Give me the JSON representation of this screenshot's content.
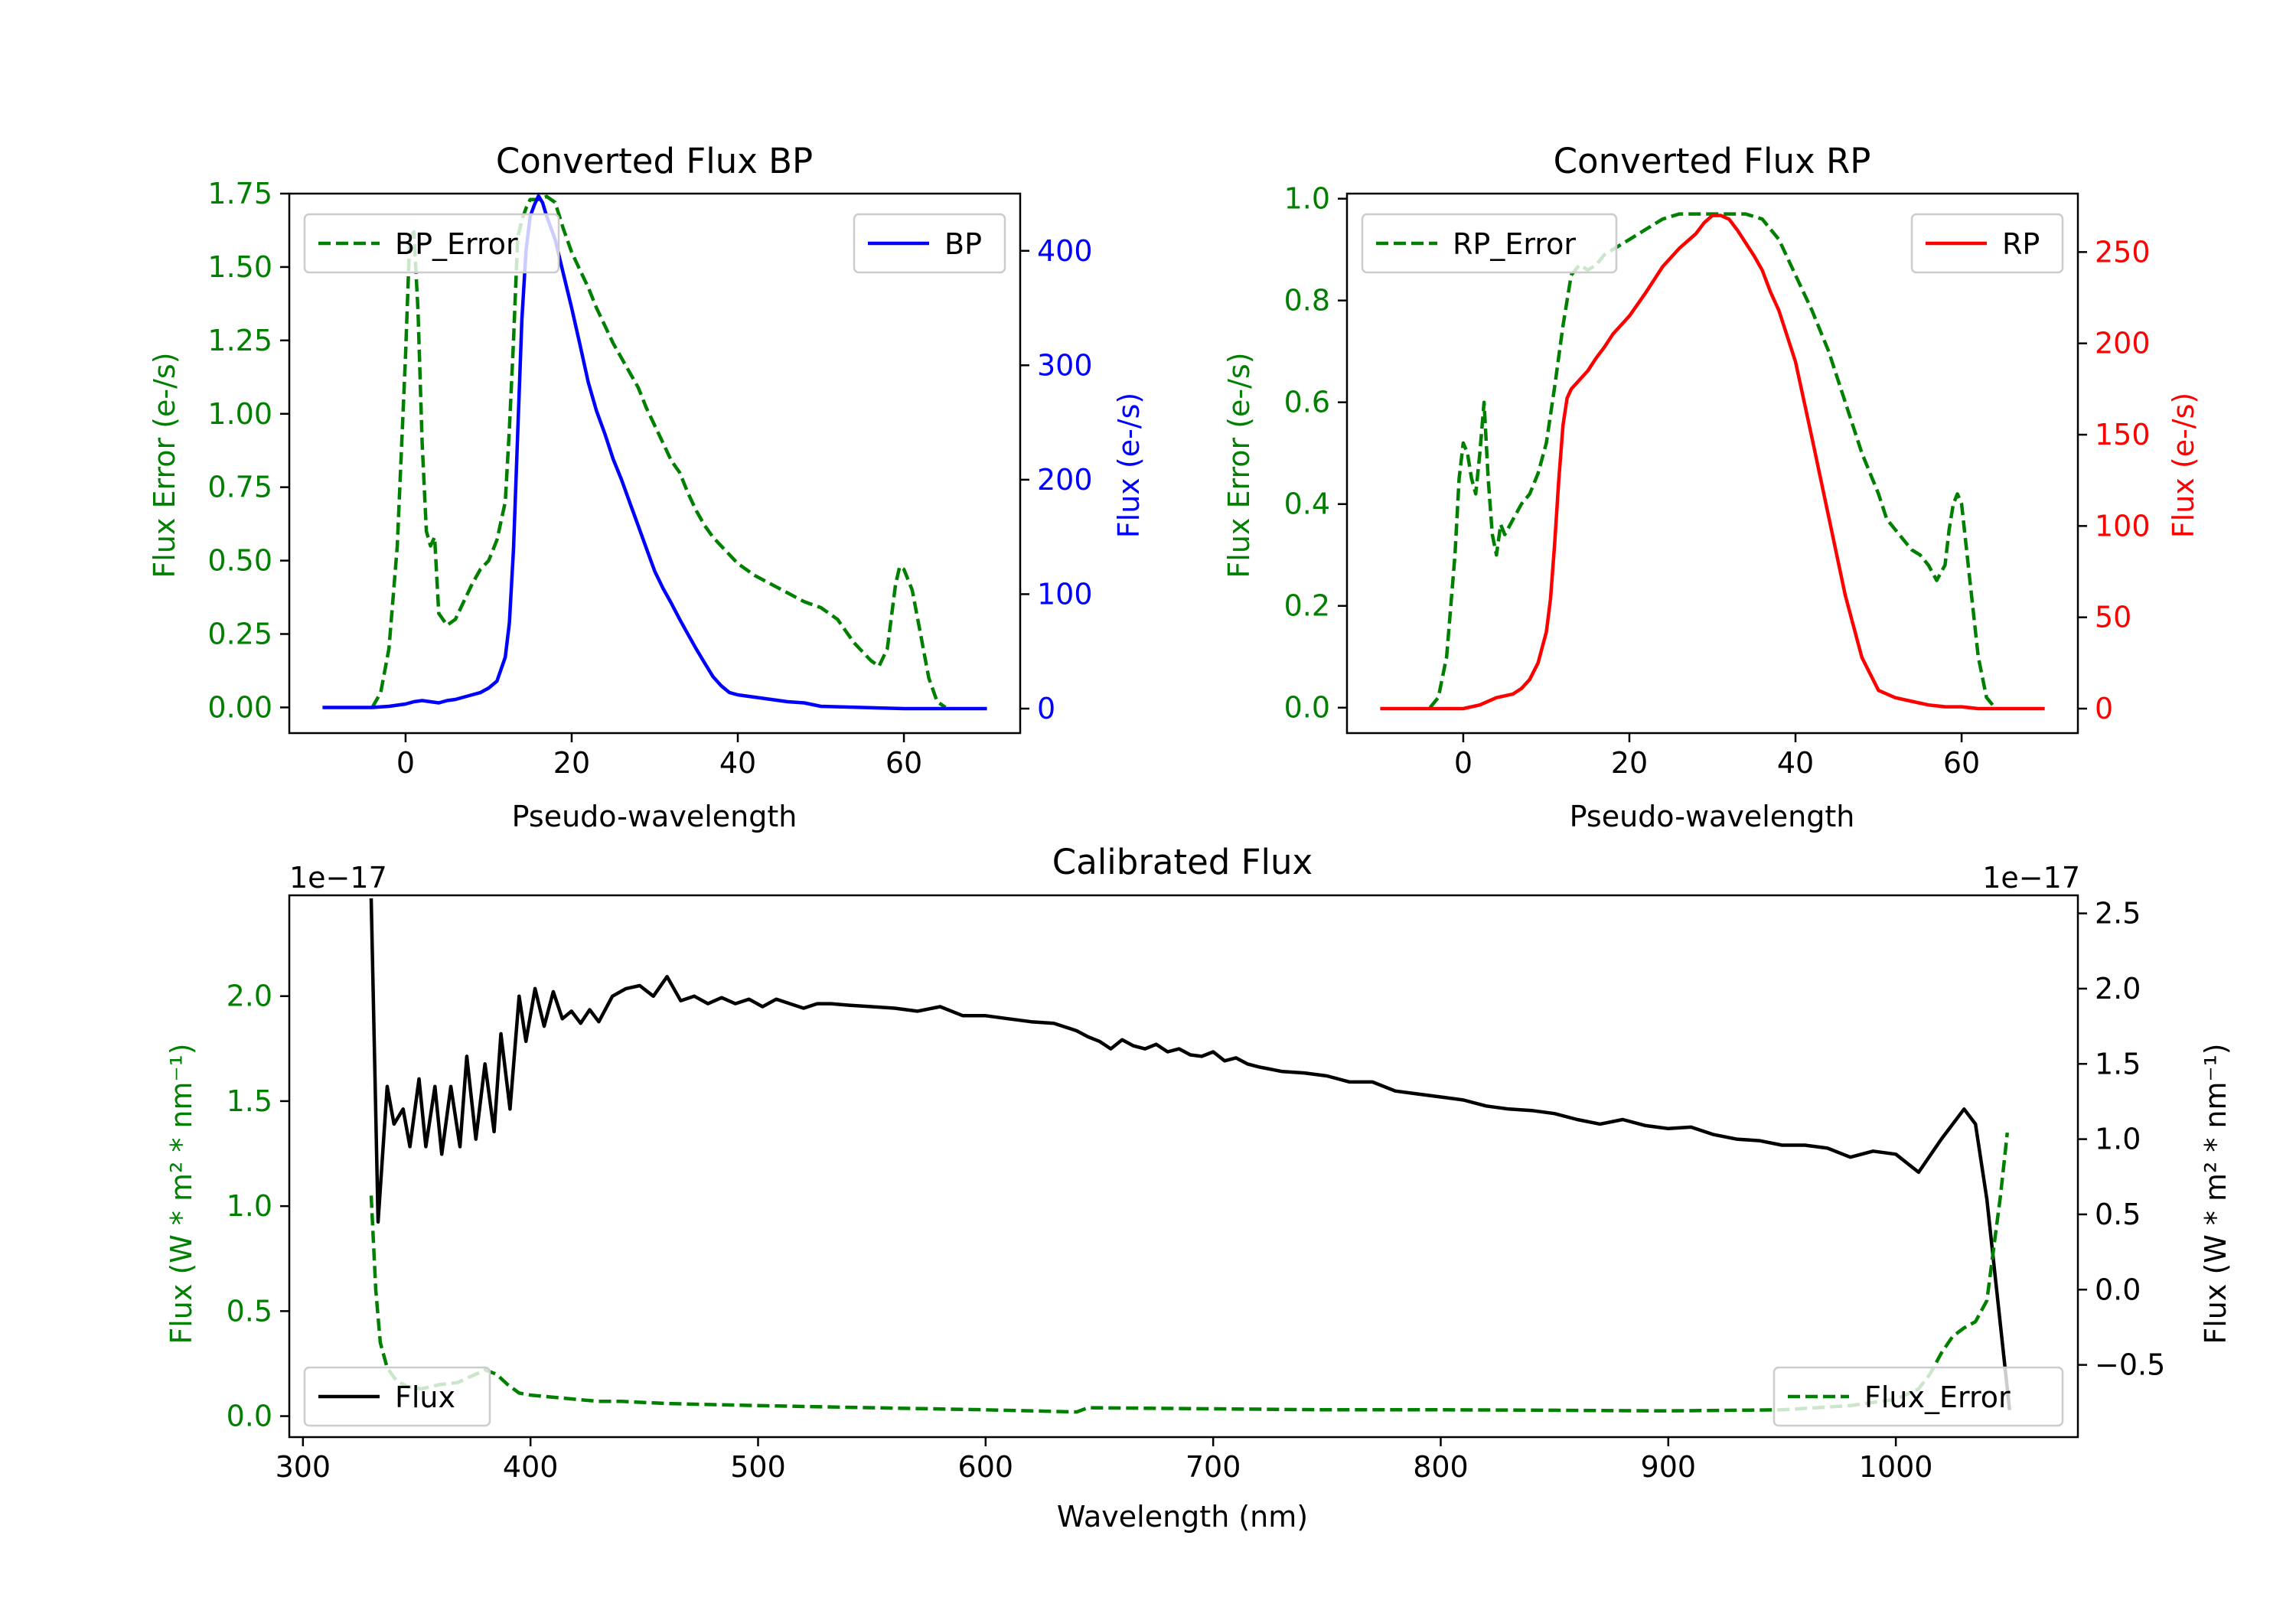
{
  "colors": {
    "green": "#008000",
    "blue": "#0000ff",
    "red": "#ff0000",
    "black": "#000000",
    "frame": "#000000",
    "legend_border": "#cccccc"
  },
  "chart_data": [
    {
      "id": "bp",
      "type": "line",
      "title": "Converted Flux BP",
      "xlabel": "Pseudo-wavelength",
      "ylabel_left": "Flux Error (e-/s)",
      "ylabel_right": "Flux (e-/s)",
      "xlim": [
        -14,
        74
      ],
      "xticks": [
        0,
        20,
        40,
        60
      ],
      "xtick_labels": [
        "0",
        "20",
        "40",
        "60"
      ],
      "left_axis": {
        "ylim": [
          -0.0875,
          1.75
        ],
        "ticks": [
          0,
          0.25,
          0.5,
          0.75,
          1.0,
          1.25,
          1.5,
          1.75
        ],
        "tick_labels": [
          "0.00",
          "0.25",
          "0.50",
          "0.75",
          "1.00",
          "1.25",
          "1.50",
          "1.75"
        ],
        "color": "green"
      },
      "right_axis": {
        "ylim": [
          -21.4,
          450
        ],
        "ticks": [
          0,
          100,
          200,
          300,
          400
        ],
        "tick_labels": [
          "0",
          "100",
          "200",
          "300",
          "400"
        ],
        "color": "blue"
      },
      "legend_left": {
        "label": "BP_Error",
        "style": "dashed",
        "color": "green"
      },
      "legend_right": {
        "label": "BP",
        "style": "solid",
        "color": "blue"
      },
      "series": [
        {
          "name": "BP_Error",
          "axis": "left",
          "color": "green",
          "style": "dashed",
          "x": [
            -4,
            -3,
            -2,
            -1,
            0,
            0.5,
            1,
            1.5,
            2,
            2.5,
            3,
            3.5,
            4,
            5,
            6,
            7,
            8,
            9,
            10,
            11,
            12,
            12.5,
            13,
            13.5,
            14,
            14.5,
            15,
            16,
            17,
            18,
            19,
            20,
            21,
            22,
            23,
            24,
            25,
            26,
            27,
            28,
            29,
            30,
            31,
            32,
            33,
            34,
            35,
            36,
            37,
            38,
            40,
            42,
            44,
            46,
            48,
            50,
            52,
            53,
            54,
            55,
            56,
            57,
            58,
            59,
            59.5,
            60,
            61,
            62,
            63,
            64,
            65
          ],
          "values": [
            0,
            0.05,
            0.2,
            0.55,
            1.2,
            1.6,
            1.62,
            1.35,
            0.9,
            0.6,
            0.55,
            0.58,
            0.32,
            0.28,
            0.3,
            0.36,
            0.42,
            0.47,
            0.5,
            0.57,
            0.7,
            0.95,
            1.25,
            1.6,
            1.66,
            1.7,
            1.73,
            1.73,
            1.74,
            1.72,
            1.63,
            1.55,
            1.49,
            1.43,
            1.36,
            1.3,
            1.24,
            1.19,
            1.14,
            1.09,
            1.02,
            0.96,
            0.9,
            0.84,
            0.8,
            0.73,
            0.67,
            0.62,
            0.58,
            0.55,
            0.49,
            0.45,
            0.42,
            0.39,
            0.36,
            0.34,
            0.3,
            0.26,
            0.22,
            0.19,
            0.16,
            0.14,
            0.2,
            0.42,
            0.48,
            0.47,
            0.4,
            0.25,
            0.1,
            0.02,
            0
          ],
          "x_start_note": "starts near -4"
        },
        {
          "name": "BP",
          "axis": "right",
          "color": "blue",
          "style": "solid",
          "x": [
            -10,
            -8,
            -6,
            -4,
            -2,
            -1,
            0,
            1,
            2,
            3,
            4,
            5,
            6,
            7,
            8,
            9,
            10,
            11,
            12,
            12.5,
            13,
            13.5,
            14,
            14.5,
            15,
            15.5,
            16,
            16.5,
            17,
            18,
            19,
            20,
            21,
            22,
            23,
            24,
            25,
            26,
            27,
            28,
            29,
            30,
            31,
            32,
            33,
            34,
            35,
            36,
            37,
            38,
            39,
            40,
            42,
            44,
            46,
            48,
            50,
            55,
            60,
            65,
            70
          ],
          "values": [
            1,
            1,
            1,
            1,
            2,
            3,
            4,
            6,
            7,
            6,
            5,
            7,
            8,
            10,
            12,
            14,
            18,
            24,
            45,
            75,
            140,
            240,
            340,
            400,
            430,
            440,
            448,
            442,
            430,
            410,
            380,
            350,
            318,
            285,
            260,
            240,
            218,
            200,
            180,
            160,
            140,
            120,
            105,
            92,
            78,
            65,
            52,
            40,
            28,
            20,
            14,
            12,
            10,
            8,
            6,
            5,
            2,
            1,
            0,
            0,
            0
          ]
        }
      ]
    },
    {
      "id": "rp",
      "type": "line",
      "title": "Converted Flux RP",
      "xlabel": "Pseudo-wavelength",
      "ylabel_left": "Flux Error (e-/s)",
      "ylabel_right": "Flux (e-/s)",
      "xlim": [
        -14,
        74
      ],
      "xticks": [
        0,
        20,
        40,
        60
      ],
      "xtick_labels": [
        "0",
        "20",
        "40",
        "60"
      ],
      "left_axis": {
        "ylim": [
          -0.05,
          1.01
        ],
        "ticks": [
          0,
          0.2,
          0.4,
          0.6,
          0.8,
          1.0
        ],
        "tick_labels": [
          "0.0",
          "0.2",
          "0.4",
          "0.6",
          "0.8",
          "1.0"
        ],
        "color": "green"
      },
      "right_axis": {
        "ylim": [
          -13.4,
          282
        ],
        "ticks": [
          0,
          50,
          100,
          150,
          200,
          250
        ],
        "tick_labels": [
          "0",
          "50",
          "100",
          "150",
          "200",
          "250"
        ],
        "color": "red"
      },
      "legend_left": {
        "label": "RP_Error",
        "style": "dashed",
        "color": "green"
      },
      "legend_right": {
        "label": "RP",
        "style": "solid",
        "color": "red"
      },
      "series": [
        {
          "name": "RP_Error",
          "axis": "left",
          "color": "green",
          "style": "dashed",
          "x": [
            -4,
            -3,
            -2,
            -1,
            -0.5,
            0,
            0.5,
            1,
            1.5,
            2,
            2.5,
            3,
            3.5,
            4,
            4.5,
            5,
            6,
            7,
            8,
            9,
            10,
            11,
            12,
            13,
            14,
            15,
            16,
            17,
            18,
            20,
            22,
            24,
            26,
            28,
            30,
            32,
            34,
            36,
            38,
            40,
            42,
            44,
            46,
            48,
            50,
            51,
            52,
            53,
            54,
            55,
            56,
            57,
            58,
            58.5,
            59,
            59.5,
            60,
            61,
            62,
            63,
            64
          ],
          "values": [
            0,
            0.02,
            0.1,
            0.3,
            0.45,
            0.52,
            0.5,
            0.45,
            0.42,
            0.5,
            0.6,
            0.45,
            0.34,
            0.3,
            0.36,
            0.34,
            0.37,
            0.4,
            0.42,
            0.46,
            0.52,
            0.63,
            0.75,
            0.85,
            0.87,
            0.86,
            0.87,
            0.89,
            0.9,
            0.92,
            0.94,
            0.96,
            0.97,
            0.97,
            0.97,
            0.97,
            0.97,
            0.96,
            0.92,
            0.85,
            0.78,
            0.7,
            0.6,
            0.5,
            0.42,
            0.37,
            0.35,
            0.33,
            0.31,
            0.3,
            0.28,
            0.25,
            0.28,
            0.35,
            0.4,
            0.42,
            0.4,
            0.25,
            0.1,
            0.02,
            0
          ]
        },
        {
          "name": "RP",
          "axis": "right",
          "color": "red",
          "style": "solid",
          "x": [
            -10,
            -6,
            -4,
            -2,
            0,
            2,
            4,
            6,
            7,
            8,
            9,
            10,
            10.5,
            11,
            11.5,
            12,
            12.5,
            13,
            14,
            15,
            16,
            17,
            18,
            20,
            22,
            24,
            26,
            28,
            29,
            30,
            31,
            32,
            33,
            34,
            35,
            36,
            37,
            38,
            40,
            42,
            44,
            46,
            48,
            50,
            52,
            54,
            56,
            58,
            60,
            62,
            64,
            66,
            70
          ],
          "values": [
            0,
            0,
            0,
            0,
            0,
            2,
            6,
            8,
            11,
            16,
            25,
            42,
            60,
            90,
            125,
            155,
            170,
            175,
            180,
            185,
            192,
            198,
            205,
            215,
            228,
            242,
            252,
            260,
            266,
            270,
            270,
            268,
            262,
            255,
            248,
            240,
            228,
            218,
            190,
            148,
            105,
            62,
            28,
            10,
            6,
            4,
            2,
            1,
            1,
            0,
            0,
            0,
            0
          ]
        }
      ]
    },
    {
      "id": "calibrated",
      "type": "line",
      "title": "Calibrated Flux",
      "xlabel": "Wavelength (nm)",
      "ylabel_left": "Flux (W * m² * nm⁻¹)",
      "ylabel_right": "Flux (W * m² * nm⁻¹)",
      "offset_left": "1e−17",
      "offset_right": "1e−17",
      "xlim": [
        294,
        1080
      ],
      "xticks": [
        300,
        400,
        500,
        600,
        700,
        800,
        900,
        1000
      ],
      "xtick_labels": [
        "300",
        "400",
        "500",
        "600",
        "700",
        "800",
        "900",
        "1000"
      ],
      "left_axis": {
        "ylim": [
          -0.1,
          2.48
        ],
        "ticks": [
          0,
          0.5,
          1.0,
          1.5,
          2.0
        ],
        "tick_labels": [
          "0.0",
          "0.5",
          "1.0",
          "1.5",
          "2.0"
        ],
        "color": "green"
      },
      "right_axis": {
        "ylim": [
          -0.98,
          2.62
        ],
        "ticks": [
          -0.5,
          0,
          0.5,
          1.0,
          1.5,
          2.0,
          2.5
        ],
        "tick_labels": [
          "−0.5",
          "0.0",
          "0.5",
          "1.0",
          "1.5",
          "2.0",
          "2.5"
        ],
        "color": "black"
      },
      "legend_left": {
        "label": "Flux",
        "style": "solid",
        "color": "black"
      },
      "legend_right": {
        "label": "Flux_Error",
        "style": "dashed",
        "color": "green"
      },
      "series": [
        {
          "name": "Flux",
          "axis": "right",
          "color": "black",
          "style": "solid",
          "x": [
            330,
            333,
            337,
            340,
            344,
            347,
            351,
            354,
            358,
            361,
            365,
            369,
            372,
            376,
            380,
            384,
            387,
            391,
            395,
            398,
            402,
            406,
            410,
            414,
            418,
            422,
            426,
            430,
            436,
            442,
            448,
            454,
            460,
            466,
            472,
            478,
            484,
            490,
            496,
            502,
            508,
            514,
            520,
            526,
            532,
            540,
            550,
            560,
            570,
            580,
            590,
            600,
            610,
            620,
            630,
            640,
            645,
            650,
            655,
            660,
            665,
            670,
            675,
            680,
            685,
            690,
            695,
            700,
            705,
            710,
            715,
            720,
            730,
            740,
            750,
            760,
            770,
            780,
            790,
            800,
            810,
            820,
            830,
            840,
            850,
            860,
            870,
            880,
            890,
            900,
            910,
            920,
            930,
            940,
            950,
            960,
            970,
            980,
            990,
            1000,
            1010,
            1020,
            1030,
            1035,
            1040,
            1050
          ],
          "values": [
            2.6,
            0.45,
            1.35,
            1.1,
            1.2,
            0.95,
            1.4,
            0.95,
            1.35,
            0.9,
            1.35,
            0.95,
            1.55,
            1.0,
            1.5,
            1.05,
            1.7,
            1.2,
            1.95,
            1.65,
            2.0,
            1.75,
            1.98,
            1.8,
            1.85,
            1.77,
            1.86,
            1.78,
            1.95,
            2.0,
            2.02,
            1.95,
            2.08,
            1.92,
            1.95,
            1.9,
            1.94,
            1.9,
            1.93,
            1.88,
            1.93,
            1.9,
            1.87,
            1.9,
            1.9,
            1.89,
            1.88,
            1.87,
            1.85,
            1.88,
            1.82,
            1.82,
            1.8,
            1.78,
            1.77,
            1.72,
            1.68,
            1.65,
            1.6,
            1.66,
            1.62,
            1.6,
            1.63,
            1.58,
            1.6,
            1.56,
            1.55,
            1.58,
            1.52,
            1.54,
            1.5,
            1.48,
            1.45,
            1.44,
            1.42,
            1.38,
            1.38,
            1.32,
            1.3,
            1.28,
            1.26,
            1.22,
            1.2,
            1.19,
            1.17,
            1.13,
            1.1,
            1.13,
            1.09,
            1.07,
            1.08,
            1.03,
            1.0,
            0.99,
            0.96,
            0.96,
            0.94,
            0.88,
            0.92,
            0.9,
            0.78,
            1.0,
            1.2,
            1.1,
            0.6,
            -0.8
          ]
        },
        {
          "name": "Flux_Error",
          "axis": "left",
          "color": "green",
          "style": "dashed",
          "x": [
            330,
            332,
            334,
            337,
            341,
            346,
            352,
            360,
            368,
            374,
            380,
            385,
            390,
            395,
            400,
            410,
            420,
            430,
            440,
            450,
            460,
            480,
            500,
            550,
            600,
            640,
            645,
            700,
            750,
            800,
            850,
            900,
            950,
            980,
            1000,
            1010,
            1015,
            1020,
            1025,
            1030,
            1035,
            1040,
            1043,
            1046,
            1049
          ],
          "values": [
            1.05,
            0.6,
            0.35,
            0.23,
            0.17,
            0.14,
            0.13,
            0.15,
            0.16,
            0.19,
            0.22,
            0.2,
            0.15,
            0.11,
            0.1,
            0.09,
            0.08,
            0.07,
            0.07,
            0.065,
            0.06,
            0.055,
            0.05,
            0.04,
            0.03,
            0.02,
            0.04,
            0.035,
            0.03,
            0.03,
            0.028,
            0.025,
            0.03,
            0.05,
            0.08,
            0.13,
            0.2,
            0.3,
            0.38,
            0.42,
            0.45,
            0.55,
            0.8,
            1.05,
            1.35
          ]
        }
      ]
    }
  ]
}
